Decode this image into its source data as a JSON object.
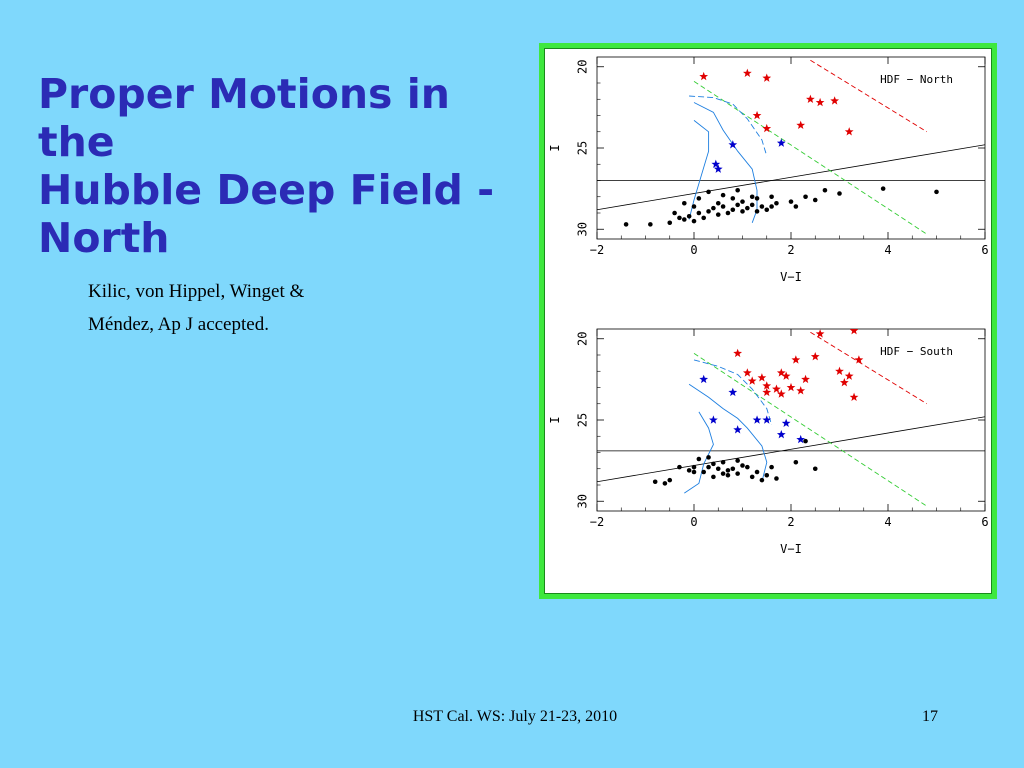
{
  "slide": {
    "title_lines": [
      "Proper Motions in the",
      "Hubble Deep Field -",
      "North"
    ],
    "citation_lines": [
      "Kilic, von Hippel, Winget &",
      "Méndez, Ap J accepted."
    ],
    "footer_center": "HST Cal. WS: July 21-23, 2010",
    "page_number": "17"
  },
  "colors": {
    "background": "#7fd8fc",
    "title": "#2b2bb5",
    "frame": "#3ee83e",
    "red": "#e00000",
    "blue": "#0000cc",
    "cyan": "#1e7fe0",
    "green_dash": "#33cc33"
  },
  "chart_data": [
    {
      "type": "scatter",
      "title": "HDF − North",
      "xlabel": "V−I",
      "ylabel": "I",
      "xlim": [
        -2,
        6
      ],
      "ylim": [
        30.6,
        19.4
      ],
      "xticks": [
        "−2",
        "0",
        "2",
        "4",
        "6"
      ],
      "yticks": [
        "20",
        "25",
        "30"
      ],
      "series": [
        {
          "color": "red",
          "marker": "star",
          "points": [
            [
              0.2,
              20.6
            ],
            [
              1.1,
              20.4
            ],
            [
              1.5,
              20.7
            ],
            [
              2.4,
              22.0
            ],
            [
              2.6,
              22.2
            ],
            [
              2.9,
              22.1
            ],
            [
              1.3,
              23.0
            ],
            [
              1.5,
              23.8
            ],
            [
              2.2,
              23.6
            ],
            [
              3.2,
              24.0
            ]
          ]
        },
        {
          "color": "blue",
          "marker": "star",
          "points": [
            [
              0.45,
              26.0
            ],
            [
              0.5,
              26.3
            ],
            [
              0.8,
              24.8
            ],
            [
              1.8,
              24.7
            ]
          ]
        },
        {
          "color": "black",
          "marker": "dot",
          "points": [
            [
              -1.4,
              29.7
            ],
            [
              -0.9,
              29.7
            ],
            [
              -0.5,
              29.6
            ],
            [
              -0.4,
              29.0
            ],
            [
              -0.3,
              29.3
            ],
            [
              -0.2,
              29.4
            ],
            [
              -0.1,
              29.2
            ],
            [
              0.0,
              29.5
            ],
            [
              0.1,
              29.0
            ],
            [
              0.2,
              29.3
            ],
            [
              0.3,
              28.9
            ],
            [
              0.4,
              28.7
            ],
            [
              0.5,
              29.1
            ],
            [
              0.6,
              28.6
            ],
            [
              0.7,
              29.0
            ],
            [
              0.8,
              28.8
            ],
            [
              0.9,
              28.5
            ],
            [
              1.0,
              28.9
            ],
            [
              1.1,
              28.7
            ],
            [
              1.2,
              28.5
            ],
            [
              1.3,
              28.9
            ],
            [
              1.4,
              28.6
            ],
            [
              1.5,
              28.8
            ],
            [
              1.6,
              28.6
            ],
            [
              1.7,
              28.4
            ],
            [
              2.0,
              28.3
            ],
            [
              2.1,
              28.6
            ],
            [
              2.3,
              28.0
            ],
            [
              2.5,
              28.2
            ],
            [
              2.7,
              27.6
            ],
            [
              3.0,
              27.8
            ],
            [
              3.9,
              27.5
            ],
            [
              5.0,
              27.7
            ],
            [
              0.1,
              28.1
            ],
            [
              0.3,
              27.7
            ],
            [
              0.6,
              27.9
            ],
            [
              0.9,
              27.6
            ],
            [
              1.2,
              28.0
            ],
            [
              -0.2,
              28.4
            ],
            [
              0.0,
              28.6
            ],
            [
              0.5,
              28.4
            ],
            [
              0.8,
              28.1
            ],
            [
              1.0,
              28.3
            ],
            [
              1.3,
              28.1
            ],
            [
              1.6,
              28.0
            ]
          ]
        }
      ],
      "lines": {
        "solid_horizontal_I": 27.0,
        "solid_sloped": [
          [
            -2,
            28.8
          ],
          [
            6,
            24.8
          ]
        ],
        "green_dashed": [
          [
            0.0,
            20.9
          ],
          [
            4.8,
            30.3
          ]
        ],
        "red_dashed": [
          [
            2.4,
            19.6
          ],
          [
            4.8,
            24.0
          ]
        ],
        "cyan_curves": [
          [
            [
              0.0,
              22.2
            ],
            [
              0.4,
              22.8
            ],
            [
              0.6,
              23.9
            ],
            [
              0.9,
              25.2
            ],
            [
              1.2,
              26.3
            ],
            [
              1.3,
              27.6
            ],
            [
              1.3,
              28.8
            ],
            [
              1.2,
              29.6
            ]
          ],
          [
            [
              -0.1,
              21.8
            ],
            [
              0.4,
              21.9
            ],
            [
              0.8,
              22.3
            ],
            [
              1.1,
              23.2
            ],
            [
              1.4,
              24.5
            ],
            [
              1.5,
              25.5
            ]
          ],
          [
            [
              0.0,
              23.3
            ],
            [
              0.3,
              24.0
            ],
            [
              0.3,
              25.2
            ],
            [
              0.2,
              26.2
            ],
            [
              0.0,
              28.2
            ],
            [
              -0.1,
              29.4
            ]
          ]
        ]
      }
    },
    {
      "type": "scatter",
      "title": "HDF − South",
      "xlabel": "V−I",
      "ylabel": "I",
      "xlim": [
        -2,
        6
      ],
      "ylim": [
        30.6,
        19.4
      ],
      "xticks": [
        "−2",
        "0",
        "2",
        "4",
        "6"
      ],
      "yticks": [
        "20",
        "25",
        "30"
      ],
      "series": [
        {
          "color": "red",
          "marker": "star",
          "points": [
            [
              2.6,
              19.7
            ],
            [
              3.3,
              19.5
            ],
            [
              0.9,
              20.9
            ],
            [
              2.1,
              21.3
            ],
            [
              2.5,
              21.1
            ],
            [
              3.4,
              21.3
            ],
            [
              1.1,
              22.1
            ],
            [
              1.4,
              22.4
            ],
            [
              1.8,
              22.1
            ],
            [
              1.9,
              22.3
            ],
            [
              2.3,
              22.5
            ],
            [
              3.0,
              22.0
            ],
            [
              3.2,
              22.3
            ],
            [
              1.2,
              22.6
            ],
            [
              1.5,
              22.9
            ],
            [
              1.7,
              23.1
            ],
            [
              2.0,
              23.0
            ],
            [
              3.1,
              22.7
            ],
            [
              1.5,
              23.3
            ],
            [
              1.8,
              23.4
            ],
            [
              2.2,
              23.2
            ],
            [
              3.3,
              23.6
            ]
          ]
        },
        {
          "color": "blue",
          "marker": "star",
          "points": [
            [
              0.2,
              22.5
            ],
            [
              0.8,
              23.3
            ],
            [
              0.4,
              25.0
            ],
            [
              0.9,
              25.6
            ],
            [
              1.3,
              25.0
            ],
            [
              1.5,
              25.0
            ],
            [
              1.9,
              25.2
            ],
            [
              1.8,
              25.9
            ],
            [
              2.2,
              26.2
            ]
          ]
        },
        {
          "color": "black",
          "marker": "dot",
          "points": [
            [
              -0.8,
              28.8
            ],
            [
              -0.6,
              28.9
            ],
            [
              -0.5,
              28.7
            ],
            [
              -0.1,
              28.1
            ],
            [
              0.0,
              27.9
            ],
            [
              0.1,
              27.4
            ],
            [
              0.2,
              28.2
            ],
            [
              0.3,
              27.9
            ],
            [
              0.4,
              28.5
            ],
            [
              0.5,
              28.0
            ],
            [
              0.6,
              28.3
            ],
            [
              0.7,
              28.4
            ],
            [
              0.8,
              28.0
            ],
            [
              0.9,
              28.3
            ],
            [
              1.0,
              27.8
            ],
            [
              1.2,
              28.5
            ],
            [
              1.3,
              28.2
            ],
            [
              1.5,
              28.4
            ],
            [
              1.6,
              27.9
            ],
            [
              1.7,
              28.6
            ],
            [
              2.1,
              27.6
            ],
            [
              2.5,
              28.0
            ],
            [
              0.3,
              27.3
            ],
            [
              0.6,
              27.6
            ],
            [
              -0.3,
              27.9
            ],
            [
              0.0,
              28.2
            ],
            [
              0.4,
              27.7
            ],
            [
              0.7,
              28.1
            ],
            [
              0.9,
              27.5
            ],
            [
              1.1,
              27.9
            ],
            [
              1.4,
              28.7
            ],
            [
              2.3,
              26.3
            ]
          ]
        }
      ],
      "lines": {
        "solid_horizontal_I": 26.9,
        "solid_sloped": [
          [
            -2,
            28.8
          ],
          [
            6,
            24.8
          ]
        ],
        "green_dashed": [
          [
            0.0,
            20.9
          ],
          [
            4.8,
            30.3
          ]
        ],
        "red_dashed": [
          [
            2.4,
            19.6
          ],
          [
            4.8,
            24.0
          ]
        ],
        "cyan_curves": [
          [
            [
              -0.1,
              22.8
            ],
            [
              0.3,
              23.6
            ],
            [
              0.6,
              24.3
            ],
            [
              0.9,
              24.9
            ],
            [
              1.1,
              25.5
            ],
            [
              1.4,
              26.6
            ],
            [
              1.5,
              27.6
            ],
            [
              1.4,
              28.8
            ]
          ],
          [
            [
              0.0,
              21.3
            ],
            [
              0.5,
              21.7
            ],
            [
              0.9,
              22.2
            ],
            [
              1.2,
              23.1
            ],
            [
              1.5,
              24.3
            ],
            [
              1.6,
              25.3
            ]
          ],
          [
            [
              0.1,
              24.5
            ],
            [
              0.3,
              25.5
            ],
            [
              0.4,
              26.5
            ],
            [
              0.2,
              27.7
            ],
            [
              0.1,
              28.9
            ],
            [
              -0.2,
              29.5
            ]
          ]
        ]
      }
    }
  ]
}
